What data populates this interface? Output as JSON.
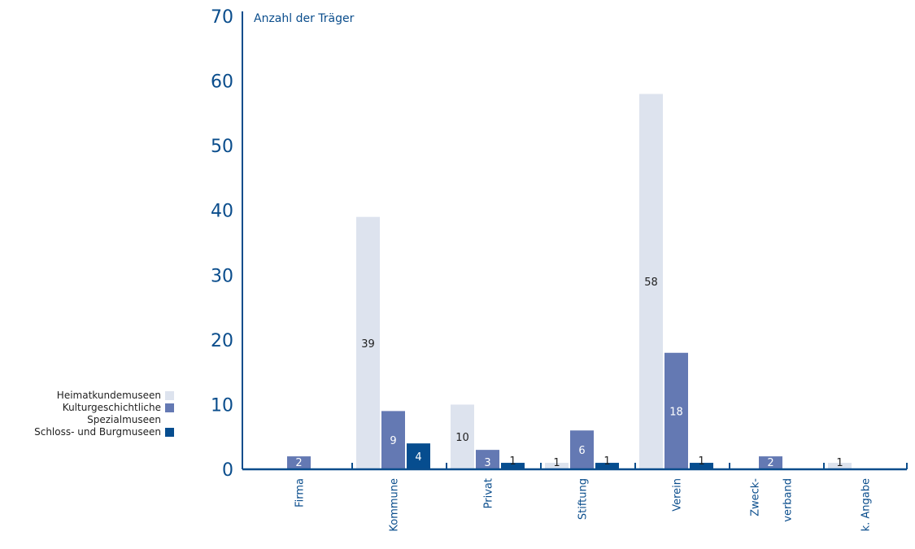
{
  "chart_data": {
    "type": "bar",
    "title": "",
    "ylabel": "Anzahl der Träger",
    "xlabel": "",
    "ylim": [
      0,
      70
    ],
    "yticks": [
      0,
      10,
      20,
      30,
      40,
      50,
      60,
      70
    ],
    "categories": [
      "Firma",
      "Kommune",
      "Privat",
      "Stiftung",
      "Verein",
      "Zweck- verband",
      "k. Angabe"
    ],
    "category_label_lines": [
      [
        "Firma"
      ],
      [
        "Kommune"
      ],
      [
        "Privat"
      ],
      [
        "Stiftung"
      ],
      [
        "Verein"
      ],
      [
        "Zweck-",
        "verband"
      ],
      [
        "k. Angabe"
      ]
    ],
    "series": [
      {
        "name": "Heimatkundemuseen",
        "color": "#dde3ee",
        "values": [
          0,
          39,
          10,
          1,
          58,
          0,
          1
        ]
      },
      {
        "name": "Kulturgeschichtliche Spezialmuseen",
        "color": "#6479b3",
        "values": [
          2,
          9,
          3,
          6,
          18,
          2,
          0
        ]
      },
      {
        "name": "Schloss- und Burgmuseen",
        "color": "#064d8f",
        "values": [
          0,
          4,
          1,
          1,
          1,
          0,
          0
        ]
      }
    ],
    "legend": {
      "position": "left",
      "lines": [
        {
          "text": "Heimatkundemuseen",
          "series": 0
        },
        {
          "text": "Kulturgeschichtliche",
          "series": 1
        },
        {
          "text": "Spezialmuseen",
          "series": -1
        },
        {
          "text": "Schloss- und Burgmuseen",
          "series": 2
        }
      ]
    },
    "grid": false,
    "axis_color": "#0a4d8c"
  }
}
